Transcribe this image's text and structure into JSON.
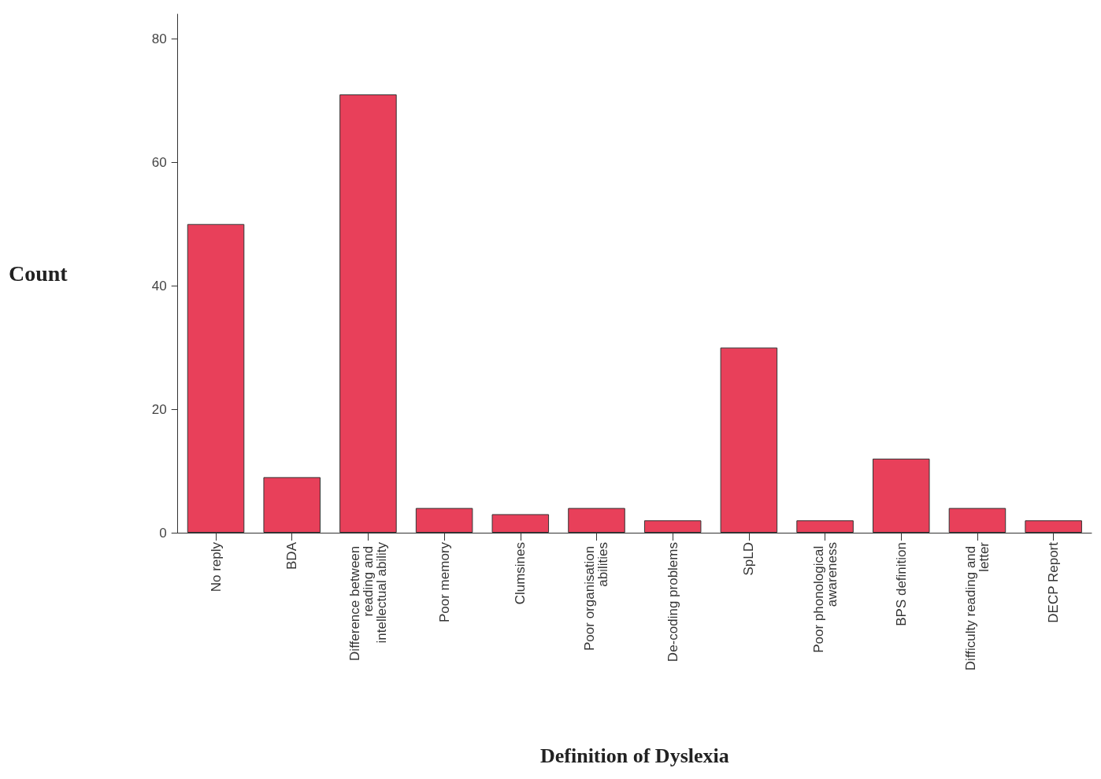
{
  "chart_data": {
    "type": "bar",
    "xlabel": "Definition of Dyslexia",
    "ylabel": "Count",
    "categories": [
      "No reply",
      "BDA",
      "Difference between reading and intellectual ability",
      "Poor memory",
      "Clumsines",
      "Poor organisation abilities",
      "De-coding problems",
      "SpLD",
      "Poor phonological awareness",
      "BPS definition",
      "Difficulty reading and letter",
      "DECP Report"
    ],
    "values": [
      50,
      9,
      71,
      4,
      3,
      4,
      2,
      30,
      2,
      12,
      4,
      2
    ],
    "color": "#e8405a",
    "ylim": [
      0,
      84
    ],
    "yticks": [
      0,
      20,
      40,
      60,
      80
    ],
    "grid": false
  }
}
